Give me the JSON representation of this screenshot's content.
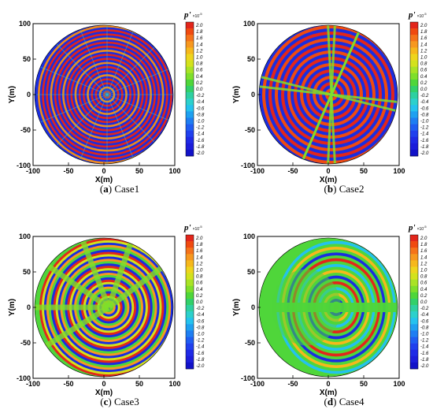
{
  "figure": {
    "panels": [
      {
        "letter": "a",
        "caption": "Case1",
        "pattern": "dense_radial_rings"
      },
      {
        "letter": "b",
        "caption": "Case2",
        "pattern": "rings_with_nodal_lines"
      },
      {
        "letter": "c",
        "caption": "Case3",
        "pattern": "rings_with_diagonal_bands"
      },
      {
        "letter": "d",
        "caption": "Case4",
        "pattern": "sparse_with_horizontal_band"
      }
    ],
    "colorbar": {
      "title": "p'",
      "exponent": "×10",
      "exponent_power": "-5",
      "ticks": [
        "2.0",
        "1.8",
        "1.6",
        "1.4",
        "1.2",
        "1.0",
        "0.8",
        "0.6",
        "0.4",
        "0.2",
        "0.0",
        "-0.2",
        "-0.4",
        "-0.6",
        "-0.8",
        "-1.0",
        "-1.2",
        "-1.4",
        "-1.6",
        "-1.8",
        "-2.0"
      ],
      "colors": [
        "#e2261b",
        "#f04a10",
        "#f5731a",
        "#f7981f",
        "#f6b81c",
        "#eed51d",
        "#d3e21c",
        "#a9e325",
        "#7fdf2b",
        "#4fd63a",
        "#32d06a",
        "#2ed0a1",
        "#2cd0cc",
        "#24c2ee",
        "#1ea0f0",
        "#1e7ef2",
        "#1f5df2",
        "#2040ee",
        "#1f2ae6",
        "#1c1ddb",
        "#1212c8"
      ]
    },
    "axes": {
      "xlabel": "X(m)",
      "ylabel": "Y(m)",
      "xticks": [
        "-100",
        "-50",
        "0",
        "50",
        "100"
      ],
      "yticks": [
        "100",
        "50",
        "0",
        "-50",
        "-100"
      ]
    }
  }
}
